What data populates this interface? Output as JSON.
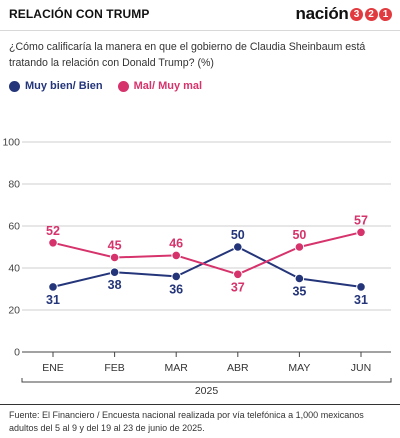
{
  "header": {
    "title": "RELACIÓN CON TRUMP",
    "brand_word": "nación",
    "brand_digits": [
      "3",
      "2",
      "1"
    ]
  },
  "question": "¿Cómo calificaría la manera en que el gobierno de Claudia Sheinbaum está tratando la relación con Donald Trump? (%)",
  "colors": {
    "positive": "#24357a",
    "negative": "#d6336c",
    "brand_red": "#e23b3f"
  },
  "chart_data": {
    "type": "line",
    "categories": [
      "ENE",
      "FEB",
      "MAR",
      "ABR",
      "MAY",
      "JUN"
    ],
    "series": [
      {
        "name": "Muy bien/ Bien",
        "values": [
          31,
          38,
          36,
          50,
          35,
          31
        ]
      },
      {
        "name": "Mal/ Muy mal",
        "values": [
          52,
          45,
          46,
          37,
          50,
          57
        ]
      }
    ],
    "ylim": [
      0,
      100
    ],
    "yticks": [
      0,
      20,
      40,
      60,
      80,
      100
    ],
    "year_label": "2025",
    "grid": true,
    "legend_position": "top-left"
  },
  "source": "Fuente: El Financiero / Encuesta nacional realizada por vía telefónica a 1,000 mexicanos adultos del 5 al 9 y del 19 al 23 de junio de 2025."
}
